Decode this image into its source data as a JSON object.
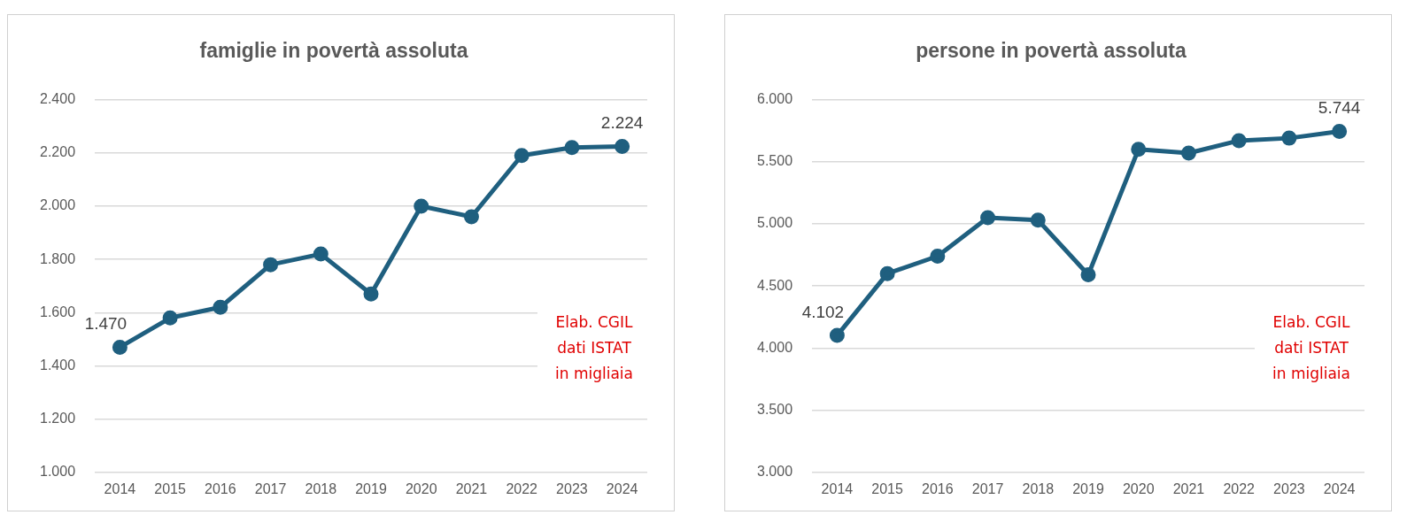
{
  "chart_data": [
    {
      "type": "line",
      "title": "famiglie in povertà assoluta",
      "categories": [
        "2014",
        "2015",
        "2016",
        "2017",
        "2018",
        "2019",
        "2020",
        "2021",
        "2022",
        "2023",
        "2024"
      ],
      "series": [
        {
          "color": "#1f5f7f",
          "values": [
            1470,
            1580,
            1620,
            1780,
            1820,
            1670,
            2000,
            1960,
            2190,
            2220,
            2224
          ],
          "value_labels": [
            "1.470",
            null,
            null,
            null,
            null,
            null,
            null,
            null,
            null,
            null,
            "2.224"
          ]
        }
      ],
      "ylim": [
        1000,
        2400
      ],
      "yticks": [
        {
          "value": 1000,
          "label": "1.000"
        },
        {
          "value": 1200,
          "label": "1.200"
        },
        {
          "value": 1400,
          "label": "1.400"
        },
        {
          "value": 1600,
          "label": "1.600"
        },
        {
          "value": 1800,
          "label": "1.800"
        },
        {
          "value": 2000,
          "label": "2.000"
        },
        {
          "value": 2200,
          "label": "2.200"
        },
        {
          "value": 2400,
          "label": "2.400"
        }
      ],
      "grid": "y",
      "legend": false,
      "marker": "circle",
      "line_style": "solid",
      "annotations": [
        "Elab. CGIL\ndati ISTAT\nin migliaia"
      ]
    },
    {
      "type": "line",
      "title": "persone in povertà assoluta",
      "categories": [
        "2014",
        "2015",
        "2016",
        "2017",
        "2018",
        "2019",
        "2020",
        "2021",
        "2022",
        "2023",
        "2024"
      ],
      "series": [
        {
          "color": "#1f5f7f",
          "values": [
            4102,
            4600,
            4740,
            5050,
            5030,
            4590,
            5600,
            5570,
            5670,
            5690,
            5744
          ],
          "value_labels": [
            "4.102",
            null,
            null,
            null,
            null,
            null,
            null,
            null,
            null,
            null,
            "5.744"
          ]
        }
      ],
      "ylim": [
        3000,
        6000
      ],
      "yticks": [
        {
          "value": 3000,
          "label": "3.000"
        },
        {
          "value": 3500,
          "label": "3.500"
        },
        {
          "value": 4000,
          "label": "4.000"
        },
        {
          "value": 4500,
          "label": "4.500"
        },
        {
          "value": 5000,
          "label": "5.000"
        },
        {
          "value": 5500,
          "label": "5.500"
        },
        {
          "value": 6000,
          "label": "6.000"
        }
      ],
      "grid": "y",
      "legend": false,
      "marker": "circle",
      "line_style": "solid",
      "annotations": [
        "Elab. CGIL\ndati ISTAT\nin migliaia"
      ]
    }
  ]
}
